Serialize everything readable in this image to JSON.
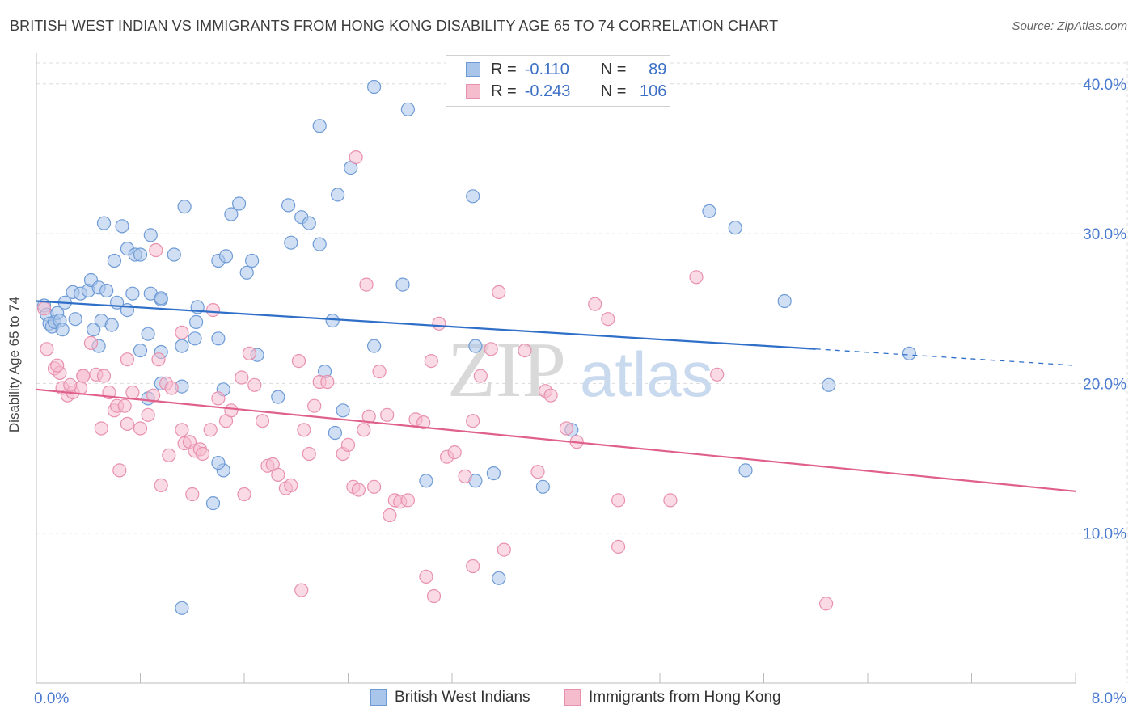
{
  "title": "BRITISH WEST INDIAN VS IMMIGRANTS FROM HONG KONG DISABILITY AGE 65 TO 74 CORRELATION CHART",
  "source": "Source: ZipAtlas.com",
  "watermark": {
    "part1": "ZIP",
    "part2": "atlas"
  },
  "legend": {
    "rows": [
      {
        "r_label": "R =",
        "r_value": "-0.110",
        "n_label": "N =",
        "n_value": "89"
      },
      {
        "r_label": "R =",
        "r_value": "-0.243",
        "n_label": "N =",
        "n_value": "106"
      }
    ]
  },
  "colors": {
    "blue_fill": "#a9c5ea",
    "blue_stroke": "#6e9bd6",
    "blue_line": "#2f6fc8",
    "pink_fill": "#f5bccd",
    "pink_stroke": "#e891ae",
    "pink_line": "#e0608c",
    "axis_text": "#4a7bd0",
    "grid": "#dcdcdc"
  },
  "chart_data": {
    "type": "scatter",
    "title": "BRITISH WEST INDIAN VS IMMIGRANTS FROM HONG KONG DISABILITY AGE 65 TO 74 CORRELATION CHART",
    "xlabel": "",
    "ylabel": "Disability Age 65 to 74",
    "xlim": [
      0,
      8
    ],
    "ylim": [
      0,
      41.5
    ],
    "x_tick_labels": [
      {
        "value": 0,
        "label": "0.0%"
      },
      {
        "value": 8,
        "label": "8.0%"
      }
    ],
    "y_tick_labels": [
      {
        "value": 10,
        "label": "10.0%"
      },
      {
        "value": 20,
        "label": "20.0%"
      },
      {
        "value": 30,
        "label": "30.0%"
      },
      {
        "value": 40,
        "label": "40.0%"
      }
    ],
    "grid": true,
    "legend_position": "top-center",
    "series": [
      {
        "name": "British West Indians",
        "r": -0.11,
        "n": 89,
        "trend": {
          "x0": 0,
          "y0": 25.5,
          "x1": 6.0,
          "y1": 22.3,
          "dashed_to_x": 8.0,
          "dashed_to_y": 21.2
        },
        "points": [
          [
            0.06,
            25.2
          ],
          [
            0.08,
            24.6
          ],
          [
            0.1,
            24.0
          ],
          [
            0.12,
            23.8
          ],
          [
            0.14,
            24.1
          ],
          [
            0.16,
            24.7
          ],
          [
            0.18,
            24.2
          ],
          [
            0.2,
            23.6
          ],
          [
            0.22,
            25.4
          ],
          [
            0.28,
            26.1
          ],
          [
            0.34,
            26.0
          ],
          [
            0.4,
            26.2
          ],
          [
            0.42,
            26.9
          ],
          [
            0.48,
            26.4
          ],
          [
            0.54,
            26.2
          ],
          [
            0.62,
            25.4
          ],
          [
            0.74,
            26.0
          ],
          [
            0.88,
            26.0
          ],
          [
            0.96,
            25.6
          ],
          [
            0.3,
            24.3
          ],
          [
            0.44,
            23.6
          ],
          [
            0.5,
            24.2
          ],
          [
            0.58,
            23.9
          ],
          [
            0.7,
            24.9
          ],
          [
            0.86,
            23.3
          ],
          [
            0.96,
            25.7
          ],
          [
            1.24,
            25.1
          ],
          [
            1.23,
            24.1
          ],
          [
            1.22,
            23.0
          ],
          [
            1.4,
            23.0
          ],
          [
            1.12,
            22.5
          ],
          [
            0.96,
            22.1
          ],
          [
            0.8,
            22.2
          ],
          [
            0.48,
            22.5
          ],
          [
            0.96,
            20.0
          ],
          [
            1.12,
            19.8
          ],
          [
            0.86,
            19.0
          ],
          [
            1.44,
            19.6
          ],
          [
            1.7,
            21.9
          ],
          [
            1.86,
            19.1
          ],
          [
            2.28,
            24.2
          ],
          [
            2.22,
            20.8
          ],
          [
            2.36,
            18.2
          ],
          [
            2.6,
            22.5
          ],
          [
            2.3,
            16.7
          ],
          [
            0.6,
            28.2
          ],
          [
            0.7,
            29.0
          ],
          [
            0.76,
            28.6
          ],
          [
            0.8,
            28.6
          ],
          [
            0.88,
            29.9
          ],
          [
            1.06,
            28.6
          ],
          [
            1.4,
            28.2
          ],
          [
            1.46,
            28.5
          ],
          [
            1.62,
            27.4
          ],
          [
            1.66,
            28.2
          ],
          [
            1.5,
            31.3
          ],
          [
            1.56,
            32.0
          ],
          [
            0.52,
            30.7
          ],
          [
            0.66,
            30.5
          ],
          [
            1.14,
            31.8
          ],
          [
            1.94,
            31.9
          ],
          [
            2.04,
            31.1
          ],
          [
            2.1,
            30.7
          ],
          [
            2.18,
            29.3
          ],
          [
            1.96,
            29.4
          ],
          [
            2.32,
            32.6
          ],
          [
            2.42,
            34.4
          ],
          [
            2.18,
            37.2
          ],
          [
            2.6,
            39.8
          ],
          [
            2.86,
            38.3
          ],
          [
            2.82,
            26.6
          ],
          [
            1.44,
            14.2
          ],
          [
            1.4,
            14.7
          ],
          [
            1.36,
            12.0
          ],
          [
            1.12,
            5.0
          ],
          [
            3.38,
            22.5
          ],
          [
            3.0,
            13.5
          ],
          [
            3.38,
            13.5
          ],
          [
            3.52,
            14.0
          ],
          [
            3.56,
            7.0
          ],
          [
            3.36,
            32.5
          ],
          [
            3.9,
            13.1
          ],
          [
            4.12,
            16.9
          ],
          [
            5.18,
            31.5
          ],
          [
            5.38,
            30.4
          ],
          [
            5.46,
            14.2
          ],
          [
            5.76,
            25.5
          ],
          [
            6.1,
            19.9
          ],
          [
            6.72,
            22.0
          ]
        ]
      },
      {
        "name": "Immigrants from Hong Kong",
        "r": -0.243,
        "n": 106,
        "trend": {
          "x0": 0,
          "y0": 19.6,
          "x1": 8.0,
          "y1": 12.8
        },
        "points": [
          [
            0.06,
            25.0
          ],
          [
            0.08,
            22.3
          ],
          [
            0.14,
            21.0
          ],
          [
            0.18,
            20.7
          ],
          [
            0.2,
            19.7
          ],
          [
            0.24,
            19.2
          ],
          [
            0.28,
            19.4
          ],
          [
            0.34,
            19.7
          ],
          [
            0.36,
            20.5
          ],
          [
            0.42,
            22.7
          ],
          [
            0.46,
            20.6
          ],
          [
            0.52,
            20.5
          ],
          [
            0.56,
            19.4
          ],
          [
            0.6,
            18.2
          ],
          [
            0.62,
            18.5
          ],
          [
            0.68,
            18.5
          ],
          [
            0.7,
            21.6
          ],
          [
            0.74,
            19.4
          ],
          [
            0.8,
            17.0
          ],
          [
            0.86,
            17.9
          ],
          [
            0.9,
            19.2
          ],
          [
            0.94,
            21.6
          ],
          [
            1.0,
            20.0
          ],
          [
            1.02,
            15.2
          ],
          [
            1.04,
            19.7
          ],
          [
            1.12,
            16.9
          ],
          [
            1.14,
            16.0
          ],
          [
            1.18,
            16.1
          ],
          [
            1.22,
            15.5
          ],
          [
            1.26,
            15.6
          ],
          [
            1.28,
            15.3
          ],
          [
            1.34,
            16.9
          ],
          [
            1.4,
            19.0
          ],
          [
            1.46,
            17.5
          ],
          [
            1.5,
            18.2
          ],
          [
            1.58,
            20.4
          ],
          [
            1.64,
            22.0
          ],
          [
            1.68,
            19.9
          ],
          [
            1.74,
            17.5
          ],
          [
            1.78,
            14.5
          ],
          [
            1.82,
            14.6
          ],
          [
            1.86,
            13.9
          ],
          [
            1.92,
            13.0
          ],
          [
            1.96,
            13.2
          ],
          [
            2.02,
            21.5
          ],
          [
            2.06,
            16.9
          ],
          [
            2.1,
            15.3
          ],
          [
            2.14,
            18.5
          ],
          [
            2.18,
            20.1
          ],
          [
            2.24,
            20.1
          ],
          [
            2.36,
            15.3
          ],
          [
            2.4,
            15.9
          ],
          [
            2.44,
            13.1
          ],
          [
            2.48,
            12.9
          ],
          [
            2.52,
            16.9
          ],
          [
            2.56,
            17.8
          ],
          [
            2.6,
            13.1
          ],
          [
            2.64,
            20.8
          ],
          [
            2.7,
            17.9
          ],
          [
            2.76,
            12.2
          ],
          [
            2.8,
            12.1
          ],
          [
            2.86,
            12.2
          ],
          [
            2.92,
            17.6
          ],
          [
            2.98,
            17.4
          ],
          [
            3.04,
            21.5
          ],
          [
            3.1,
            24.0
          ],
          [
            3.16,
            15.1
          ],
          [
            3.22,
            15.4
          ],
          [
            3.3,
            13.8
          ],
          [
            3.36,
            17.5
          ],
          [
            3.42,
            20.5
          ],
          [
            3.5,
            22.3
          ],
          [
            3.56,
            26.1
          ],
          [
            3.6,
            8.9
          ],
          [
            3.76,
            22.2
          ],
          [
            3.86,
            14.1
          ],
          [
            3.92,
            19.5
          ],
          [
            3.96,
            19.2
          ],
          [
            4.08,
            17.0
          ],
          [
            4.16,
            16.1
          ],
          [
            4.3,
            25.3
          ],
          [
            4.4,
            24.3
          ],
          [
            4.48,
            9.1
          ],
          [
            4.48,
            12.2
          ],
          [
            4.88,
            12.2
          ],
          [
            5.08,
            27.1
          ],
          [
            5.24,
            20.6
          ],
          [
            6.08,
            5.3
          ],
          [
            3.0,
            7.1
          ],
          [
            3.06,
            5.8
          ],
          [
            3.36,
            7.8
          ],
          [
            2.04,
            6.2
          ],
          [
            2.72,
            11.2
          ],
          [
            0.64,
            14.2
          ],
          [
            0.96,
            13.2
          ],
          [
            1.2,
            12.6
          ],
          [
            1.6,
            12.6
          ],
          [
            0.7,
            17.3
          ],
          [
            0.5,
            17.0
          ],
          [
            0.36,
            20.5
          ],
          [
            0.16,
            21.2
          ],
          [
            0.26,
            19.9
          ],
          [
            1.12,
            23.4
          ],
          [
            1.36,
            24.9
          ],
          [
            2.54,
            26.6
          ],
          [
            2.46,
            35.1
          ],
          [
            0.92,
            28.9
          ]
        ]
      }
    ]
  }
}
